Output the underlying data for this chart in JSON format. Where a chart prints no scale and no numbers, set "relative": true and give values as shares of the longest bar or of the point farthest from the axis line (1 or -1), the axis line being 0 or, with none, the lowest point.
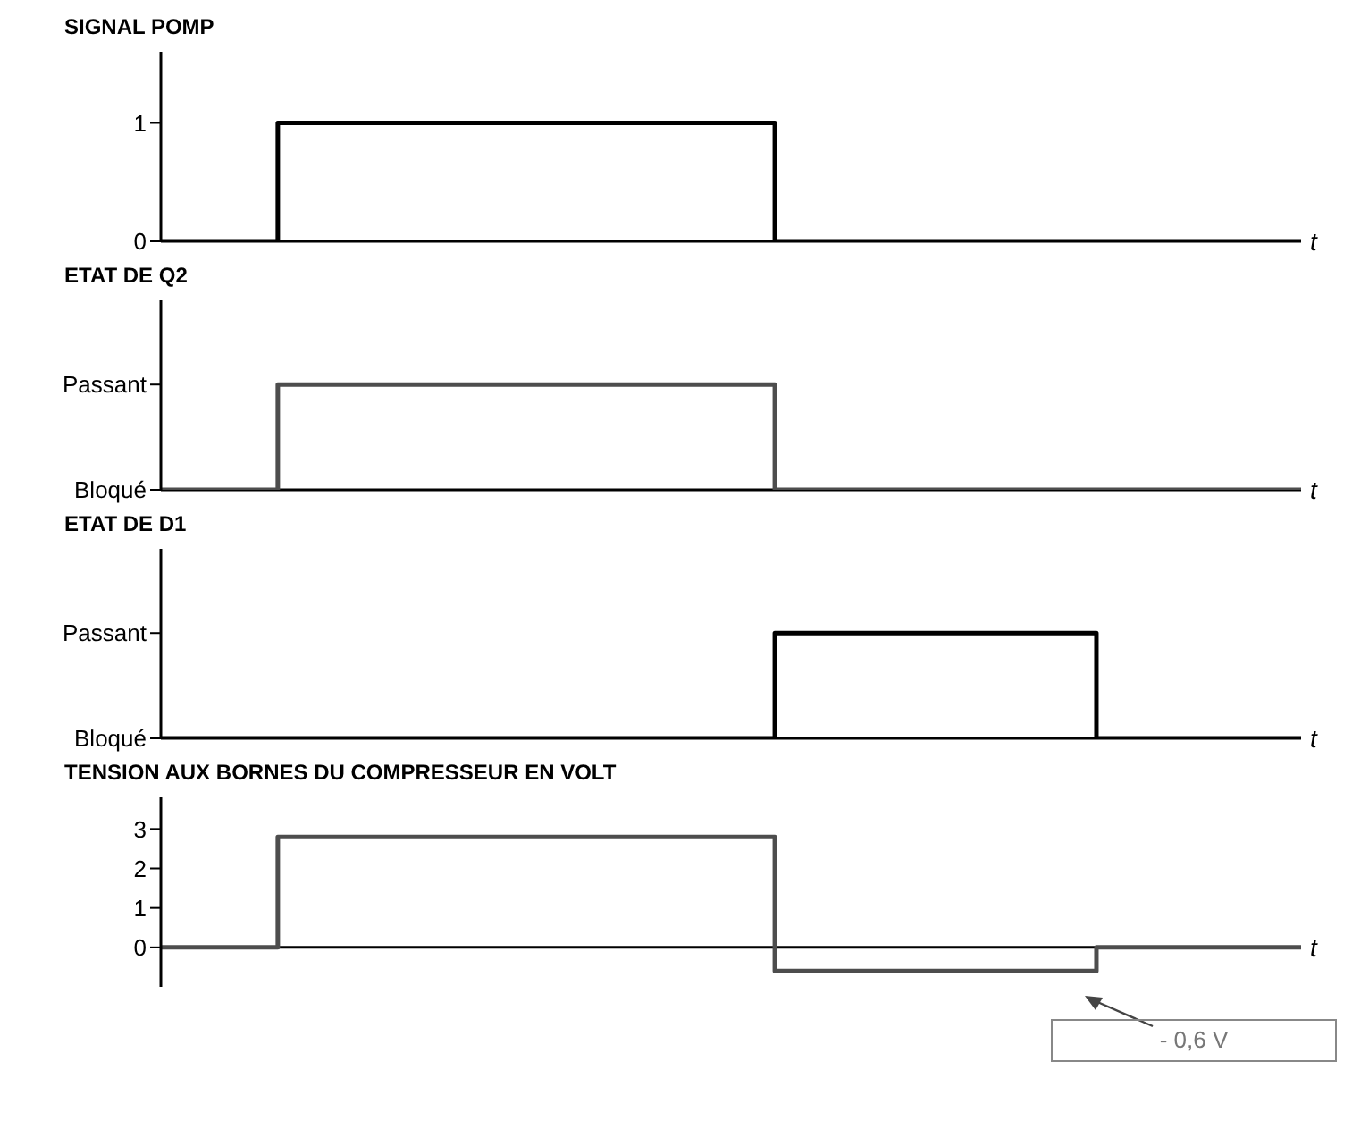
{
  "chart_data": [
    {
      "type": "step",
      "title": "SIGNAL POMP",
      "xlabel": "t",
      "categories": [
        null,
        null,
        null,
        null,
        null,
        null,
        null,
        null,
        null,
        null,
        null,
        null,
        null,
        null,
        null,
        null,
        null,
        null,
        null,
        null,
        null,
        null,
        null,
        null,
        null,
        null,
        null,
        null,
        null,
        null,
        null,
        null,
        null,
        null,
        null,
        null,
        null,
        null,
        null,
        null
      ],
      "values": [
        0,
        0,
        0,
        0,
        1,
        1,
        1,
        1,
        1,
        1,
        1,
        1,
        1,
        1,
        1,
        1,
        1,
        1,
        1,
        1,
        1,
        0,
        0,
        0,
        0,
        0,
        0,
        0,
        0,
        0,
        0,
        0,
        0,
        0,
        0,
        0,
        0,
        0,
        0,
        0
      ],
      "color": "#000000",
      "ylim": [
        0,
        1.6
      ],
      "yticks": [
        0,
        1
      ],
      "legend": false,
      "marker": "none"
    },
    {
      "type": "step",
      "title": "ETAT DE Q2",
      "xlabel": "t",
      "categories": [
        null,
        null,
        null,
        null,
        null,
        null,
        null,
        null,
        null,
        null,
        null,
        null,
        null,
        null,
        null,
        null,
        null,
        null,
        null,
        null,
        null,
        null,
        null,
        null,
        null,
        null,
        null,
        null,
        null,
        null,
        null,
        null,
        null,
        null,
        null,
        null,
        null,
        null,
        null,
        null
      ],
      "relative": true,
      "annotations": [
        "Passant",
        "Bloqué"
      ],
      "values": [
        0,
        0,
        0,
        0,
        1,
        1,
        1,
        1,
        1,
        1,
        1,
        1,
        1,
        1,
        1,
        1,
        1,
        1,
        1,
        1,
        1,
        0,
        0,
        0,
        0,
        0,
        0,
        0,
        0,
        0,
        0,
        0,
        0,
        0,
        0,
        0,
        0,
        0,
        0,
        0
      ],
      "color": "#4d4d4d",
      "legend": false,
      "marker": "none"
    },
    {
      "type": "step",
      "title": "ETAT DE D1",
      "xlabel": "t",
      "categories": [
        null,
        null,
        null,
        null,
        null,
        null,
        null,
        null,
        null,
        null,
        null,
        null,
        null,
        null,
        null,
        null,
        null,
        null,
        null,
        null,
        null,
        null,
        null,
        null,
        null,
        null,
        null,
        null,
        null,
        null,
        null,
        null,
        null,
        null,
        null,
        null,
        null,
        null,
        null,
        null
      ],
      "relative": true,
      "annotations": [
        "Passant",
        "Bloqué"
      ],
      "values": [
        0,
        0,
        0,
        0,
        0,
        0,
        0,
        0,
        0,
        0,
        0,
        0,
        0,
        0,
        0,
        0,
        0,
        0,
        0,
        0,
        0,
        1,
        1,
        1,
        1,
        1,
        1,
        1,
        1,
        1,
        1,
        1,
        0,
        0,
        0,
        0,
        0,
        0,
        0,
        0
      ],
      "color": "#000000",
      "legend": false,
      "marker": "none"
    },
    {
      "type": "step",
      "title": "TENSION AUX BORNES DU COMPRESSEUR EN VOLT",
      "xlabel": "t",
      "categories": [
        null,
        null,
        null,
        null,
        null,
        null,
        null,
        null,
        null,
        null,
        null,
        null,
        null,
        null,
        null,
        null,
        null,
        null,
        null,
        null,
        null,
        null,
        null,
        null,
        null,
        null,
        null,
        null,
        null,
        null,
        null,
        null,
        null,
        null,
        null,
        null,
        null,
        null,
        null,
        null
      ],
      "values": [
        0,
        0,
        0,
        0,
        2.8,
        2.8,
        2.8,
        2.8,
        2.8,
        2.8,
        2.8,
        2.8,
        2.8,
        2.8,
        2.8,
        2.8,
        2.8,
        2.8,
        2.8,
        2.8,
        2.8,
        -0.6,
        -0.6,
        -0.6,
        -0.6,
        -0.6,
        -0.6,
        -0.6,
        -0.6,
        -0.6,
        -0.6,
        -0.6,
        0,
        0,
        0,
        0,
        0,
        0,
        0,
        0
      ],
      "color": "#4d4d4d",
      "ylim": [
        -1,
        3.8
      ],
      "yticks": [
        0,
        1,
        2,
        3
      ],
      "legend": false,
      "marker": "none",
      "annotations": [
        "- 0,6 V"
      ]
    }
  ]
}
